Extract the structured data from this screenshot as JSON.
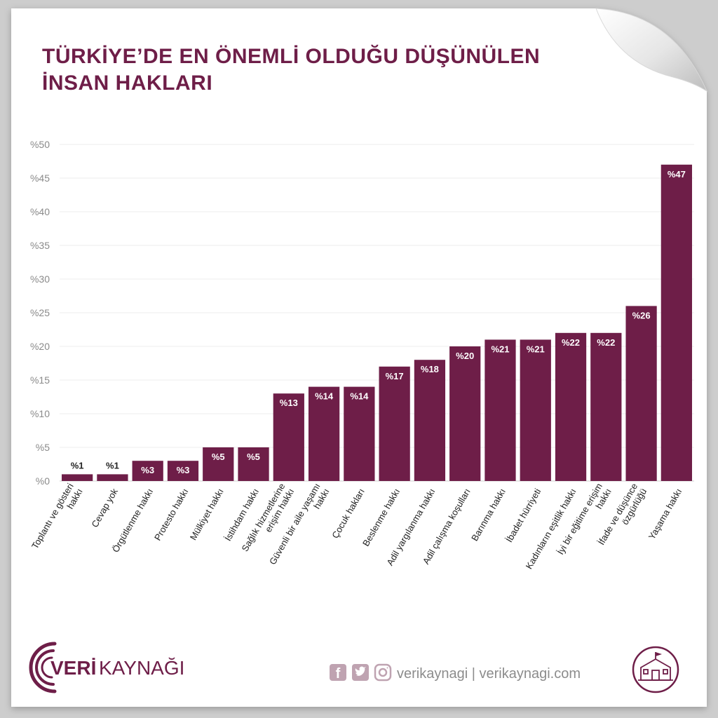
{
  "chart_data": {
    "type": "bar",
    "title": "TÜRKİYE’DE EN ÖNEMLİ OLDUĞU DÜŞÜNÜLEN İNSAN HAKLARI",
    "title_lines": [
      "TÜRKİYE’DE EN ÖNEMLİ OLDUĞU DÜŞÜNÜLEN",
      "İNSAN HAKLARI"
    ],
    "xlabel": "",
    "ylabel": "",
    "ylim": [
      0,
      50
    ],
    "yticks": [
      0,
      5,
      10,
      15,
      20,
      25,
      30,
      35,
      40,
      45,
      50
    ],
    "ytick_labels": [
      "%0",
      "%5",
      "%10",
      "%15",
      "%20",
      "%25",
      "%30",
      "%35",
      "%40",
      "%45",
      "%50"
    ],
    "grid": true,
    "legend": "none",
    "bar_color": "#6e1e48",
    "categories": [
      "Toplantı ve gösteri hakkı",
      "Cevap yok",
      "Örgütlenme hakkı",
      "Protesto hakkı",
      "Mülkiyet hakkı",
      "İstihdam hakkı",
      "Sağlık hizmetlerine erişim hakkı",
      "Güvenli bir aile yaşamı hakkı",
      "Çocuk hakları",
      "Beslenme hakkı",
      "Adil yargılanma hakkı",
      "Adil çalışma koşulları",
      "Barınma hakkı",
      "İbadet hürriyeti",
      "Kadınların eşitlik hakkı",
      "İyi bir eğitime erişim hakkı",
      "İfade ve düşünce özgürlüğü",
      "Yaşama hakkı"
    ],
    "category_lines": [
      [
        "Toplantı ve gösteri",
        "hakkı"
      ],
      [
        "Cevap yok"
      ],
      [
        "Örgütlenme hakkı"
      ],
      [
        "Protesto hakkı"
      ],
      [
        "Mülkiyet hakkı"
      ],
      [
        "İstihdam hakkı"
      ],
      [
        "Sağlık hizmetlerine",
        "erişim hakkı"
      ],
      [
        "Güvenli bir aile yaşamı",
        "hakkı"
      ],
      [
        "Çocuk hakları"
      ],
      [
        "Beslenme hakkı"
      ],
      [
        "Adil yargılanma hakkı"
      ],
      [
        "Adil çalışma koşulları"
      ],
      [
        "Barınma hakkı"
      ],
      [
        "İbadet hürriyeti"
      ],
      [
        "Kadınların eşitlik hakkı"
      ],
      [
        "İyi bir eğitime erişim",
        "hakkı"
      ],
      [
        "İfade ve düşünce",
        "özgürlüğü"
      ],
      [
        "Yaşama hakkı"
      ]
    ],
    "values": [
      1,
      1,
      3,
      3,
      5,
      5,
      13,
      14,
      14,
      17,
      18,
      20,
      21,
      21,
      22,
      22,
      26,
      47
    ],
    "value_labels": [
      "%1",
      "%1",
      "%3",
      "%3",
      "%5",
      "%5",
      "%13",
      "%14",
      "%14",
      "%17",
      "%18",
      "%20",
      "%21",
      "%21",
      "%22",
      "%22",
      "%26",
      "%47"
    ]
  },
  "footer": {
    "brand_veri": "VERİ",
    "brand_kaynagi": "KAYNAĞI",
    "social_text": "verikaynagi | verikaynagi.com",
    "facebook_icon": "facebook-icon",
    "twitter_icon": "twitter-icon",
    "instagram_icon": "instagram-icon",
    "badge_icon": "school-building-icon"
  },
  "colors": {
    "accent": "#6e1e48",
    "title": "#6e1e48",
    "axis_text": "#8a8a8a",
    "footer_text": "#8c8c8c"
  }
}
